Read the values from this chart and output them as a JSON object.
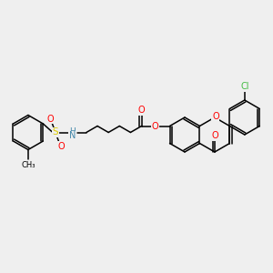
{
  "background_color": "#efefef",
  "atom_colors": {
    "C": "#000000",
    "O": "#ff0000",
    "N": "#4488aa",
    "S": "#ddcc00",
    "Cl": "#44bb44",
    "H": "#888888"
  },
  "lw": 1.1,
  "fs": 7.0
}
